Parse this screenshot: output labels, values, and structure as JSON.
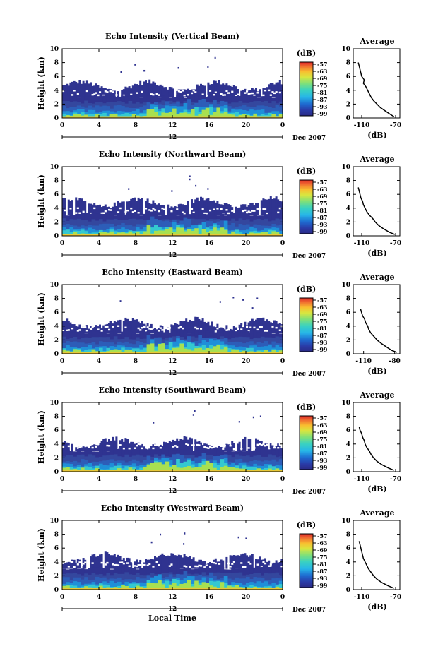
{
  "figure": {
    "x_axis_label": "Local Time",
    "date_label": "Dec 2007",
    "day_label": "12"
  },
  "chart_data": [
    {
      "type": "heatmap",
      "title": "Echo Intensity (Vertical Beam)",
      "ylabel": "Height (km)",
      "xlabel": "Local Time",
      "xlim": [
        0,
        24
      ],
      "ylim": [
        0,
        10
      ],
      "x_ticks": [
        "0",
        "4",
        "8",
        "12",
        "16",
        "20",
        "0"
      ],
      "y_ticks": [
        "0",
        "2",
        "4",
        "6",
        "8",
        "10"
      ],
      "colorbar": {
        "unit": "(dB)",
        "ticks": [
          "-57",
          "-63",
          "-69",
          "-75",
          "-81",
          "-87",
          "-93",
          "-99"
        ]
      },
      "description_layers": [
        {
          "top_km": 4.5,
          "level": "weak"
        },
        {
          "top_km": 3.0,
          "level": "weak-moderate"
        },
        {
          "top_km": 1.5,
          "level": "moderate"
        },
        {
          "top_km": 0.7,
          "level": "strong"
        }
      ],
      "average_profile": {
        "title": "Average",
        "xlabel": "(dB)",
        "x_ticks": [
          "-110",
          "-70"
        ],
        "y_ticks": [
          "0",
          "2",
          "4",
          "6",
          "8",
          "10"
        ],
        "xlim": [
          -120,
          -65
        ],
        "height_km": [
          0.2,
          0.5,
          1,
          1.5,
          2,
          2.5,
          3,
          3.5,
          4,
          4.5,
          5,
          5.5,
          6,
          6.5,
          7,
          7.5,
          8
        ],
        "dB": [
          -72,
          -76,
          -82,
          -88,
          -92,
          -96,
          -99,
          -101,
          -103,
          -105,
          -108,
          -107,
          -110,
          -111,
          -112,
          -113,
          -114
        ]
      }
    },
    {
      "type": "heatmap",
      "title": "Echo Intensity (Northward Beam)",
      "ylabel": "Height (km)",
      "xlabel": "Local Time",
      "xlim": [
        0,
        24
      ],
      "ylim": [
        0,
        10
      ],
      "x_ticks": [
        "0",
        "4",
        "8",
        "12",
        "16",
        "20",
        "0"
      ],
      "y_ticks": [
        "0",
        "2",
        "4",
        "6",
        "8",
        "10"
      ],
      "colorbar": {
        "unit": "(dB)",
        "ticks": [
          "-57",
          "-63",
          "-69",
          "-75",
          "-81",
          "-87",
          "-93",
          "-99"
        ]
      },
      "average_profile": {
        "title": "Average",
        "xlabel": "(dB)",
        "x_ticks": [
          "-110",
          "-70"
        ],
        "y_ticks": [
          "0",
          "2",
          "4",
          "6",
          "8",
          "10"
        ],
        "xlim": [
          -120,
          -65
        ],
        "height_km": [
          0.2,
          0.5,
          1,
          1.5,
          2,
          2.5,
          3,
          3.5,
          4,
          4.5,
          5,
          5.5,
          6,
          6.5,
          7
        ],
        "dB": [
          -71,
          -77,
          -84,
          -90,
          -94,
          -97,
          -101,
          -104,
          -106,
          -108,
          -109,
          -111,
          -112,
          -113,
          -114
        ]
      }
    },
    {
      "type": "heatmap",
      "title": "Echo Intensity (Eastward Beam)",
      "ylabel": "Height (km)",
      "xlabel": "Local Time",
      "xlim": [
        0,
        24
      ],
      "ylim": [
        0,
        10
      ],
      "x_ticks": [
        "0",
        "4",
        "8",
        "12",
        "16",
        "20",
        "0"
      ],
      "y_ticks": [
        "0",
        "2",
        "4",
        "6",
        "8",
        "10"
      ],
      "colorbar": {
        "unit": "(dB)",
        "ticks": [
          "-57",
          "-63",
          "-69",
          "-75",
          "-81",
          "-87",
          "-93",
          "-99"
        ]
      },
      "average_profile": {
        "title": "Average",
        "xlabel": "(dB)",
        "x_ticks": [
          "-110",
          "-80"
        ],
        "y_ticks": [
          "0",
          "2",
          "4",
          "6",
          "8",
          "10"
        ],
        "xlim": [
          -120,
          -75
        ],
        "height_km": [
          0.2,
          0.5,
          1,
          1.5,
          2,
          2.5,
          3,
          3.5,
          4,
          4.5,
          5,
          5.5,
          6,
          6.5
        ],
        "dB": [
          -78,
          -83,
          -88,
          -93,
          -97,
          -100,
          -103,
          -105,
          -106,
          -108,
          -109,
          -111,
          -112,
          -113
        ]
      }
    },
    {
      "type": "heatmap",
      "title": "Echo Intensity (Southward Beam)",
      "ylabel": "Height (km)",
      "xlabel": "Local Time",
      "xlim": [
        0,
        24
      ],
      "ylim": [
        0,
        10
      ],
      "x_ticks": [
        "0",
        "4",
        "8",
        "12",
        "16",
        "20",
        "0"
      ],
      "y_ticks": [
        "0",
        "2",
        "4",
        "6",
        "8",
        "10"
      ],
      "colorbar": {
        "unit": "(dB)",
        "ticks": [
          "-57",
          "-63",
          "-69",
          "-75",
          "-81",
          "-87",
          "-93",
          "-99"
        ]
      },
      "average_profile": {
        "title": "Average",
        "xlabel": "(dB)",
        "x_ticks": [
          "-110",
          "-70"
        ],
        "y_ticks": [
          "0",
          "2",
          "4",
          "6",
          "8",
          "10"
        ],
        "xlim": [
          -120,
          -65
        ],
        "height_km": [
          0.2,
          0.5,
          1,
          1.5,
          2,
          2.5,
          3,
          3.5,
          4,
          4.5,
          5,
          5.5,
          6,
          6.5
        ],
        "dB": [
          -72,
          -78,
          -86,
          -92,
          -96,
          -99,
          -101,
          -104,
          -106,
          -107,
          -109,
          -110,
          -112,
          -113
        ]
      }
    },
    {
      "type": "heatmap",
      "title": "Echo Intensity (Westward Beam)",
      "ylabel": "Height (km)",
      "xlabel": "Local Time",
      "xlim": [
        0,
        24
      ],
      "ylim": [
        0,
        10
      ],
      "x_ticks": [
        "0",
        "4",
        "8",
        "12",
        "16",
        "20",
        "0"
      ],
      "y_ticks": [
        "0",
        "2",
        "4",
        "6",
        "8",
        "10"
      ],
      "colorbar": {
        "unit": "(dB)",
        "ticks": [
          "-57",
          "-63",
          "-69",
          "-75",
          "-81",
          "-87",
          "-93",
          "-99"
        ]
      },
      "average_profile": {
        "title": "Average",
        "xlabel": "(dB)",
        "x_ticks": [
          "-110",
          "-70"
        ],
        "y_ticks": [
          "0",
          "2",
          "4",
          "6",
          "8",
          "10"
        ],
        "xlim": [
          -120,
          -65
        ],
        "height_km": [
          0.2,
          0.5,
          1,
          1.5,
          2,
          2.5,
          3,
          3.5,
          4,
          4.5,
          5,
          5.5,
          6,
          6.5,
          7
        ],
        "dB": [
          -72,
          -78,
          -86,
          -92,
          -96,
          -99,
          -102,
          -104,
          -106,
          -108,
          -109,
          -110,
          -111,
          -112,
          -113
        ]
      }
    }
  ],
  "colors": {
    "colorbar": [
      "#2a2a86",
      "#2a3aa6",
      "#2060c8",
      "#1e8ee0",
      "#27b6e8",
      "#3ad2c0",
      "#7ee07a",
      "#c8e640",
      "#f8d030",
      "#f89830",
      "#f06030",
      "#e02828"
    ],
    "axis": "#000000",
    "background": "#ffffff"
  }
}
